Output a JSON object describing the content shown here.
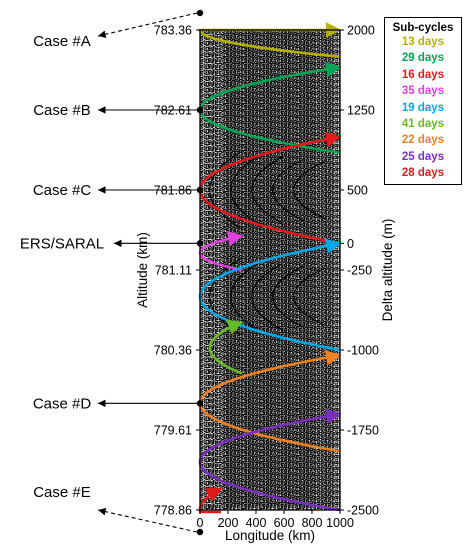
{
  "chart_data": {
    "type": "line",
    "xlabel": "Longitude (km)",
    "ylabel_left": "Altitude (km)",
    "ylabel_right": "Delta altitude (m)",
    "x_ticks": [
      "0",
      "200",
      "400",
      "600",
      "800",
      "1000"
    ],
    "y_left_ticks": [
      "783.36",
      "782.61",
      "781.86",
      "781.11",
      "780.36",
      "779.61",
      "778.86"
    ],
    "y_right_ticks": [
      "2000",
      "1250",
      "500",
      "0",
      "-250",
      "-1000",
      "-1750",
      "-2500"
    ],
    "xlim": [
      0,
      1000
    ],
    "ylim_right": [
      -2500,
      2000
    ],
    "legend": {
      "title": "Sub-cycles",
      "placement": "top-right, outside plot",
      "items": [
        {
          "label": "13 days",
          "color": "#b5b000"
        },
        {
          "label": "29 days",
          "color": "#00a651"
        },
        {
          "label": "16 days",
          "color": "#e31a1c"
        },
        {
          "label": "35 days",
          "color": "#e040e0"
        },
        {
          "label": "19 days",
          "color": "#00a8e8"
        },
        {
          "label": "41 days",
          "color": "#66bb22"
        },
        {
          "label": "22 days",
          "color": "#f08020"
        },
        {
          "label": "25 days",
          "color": "#7b2fbf"
        },
        {
          "label": "28 days",
          "color": "#e31a1c"
        }
      ]
    },
    "series": [
      {
        "name": "13 days",
        "color": "#b5b000",
        "vertex_delta_m": 2000,
        "vertex_x_km": 0,
        "half_width_m": 250,
        "end_x_km": 1000
      },
      {
        "name": "29 days",
        "color": "#00a651",
        "vertex_delta_m": 1250,
        "vertex_x_km": 0,
        "half_width_m": 400,
        "end_x_km": 1000
      },
      {
        "name": "16 days",
        "color": "#e31a1c",
        "vertex_delta_m": 500,
        "vertex_x_km": 0,
        "half_width_m": 500,
        "end_x_km": 1000
      },
      {
        "name": "35 days",
        "color": "#e040e0",
        "vertex_delta_m": -90,
        "vertex_x_km": 0,
        "half_width_m": 160,
        "end_x_km": 300
      },
      {
        "name": "19 days",
        "color": "#00a8e8",
        "vertex_delta_m": -500,
        "vertex_x_km": 0,
        "half_width_m": 500,
        "end_x_km": 1000
      },
      {
        "name": "41 days",
        "color": "#66bb22",
        "vertex_delta_m": -980,
        "vertex_x_km": 70,
        "half_width_m": 240,
        "end_x_km": 300
      },
      {
        "name": "22 days",
        "color": "#f08020",
        "vertex_delta_m": -1500,
        "vertex_x_km": 0,
        "half_width_m": 450,
        "end_x_km": 1000
      },
      {
        "name": "25 days",
        "color": "#7b2fbf",
        "vertex_delta_m": -2050,
        "vertex_x_km": 0,
        "half_width_m": 450,
        "end_x_km": 1000
      },
      {
        "name": "28 days",
        "color": "#e31a1c",
        "vertex_delta_m": -2500,
        "vertex_x_km": 0,
        "half_width_m": 200,
        "end_x_km": 150
      }
    ],
    "annotations": [
      {
        "label": "Case #A",
        "at_delta_m": 2000,
        "style": "dashed"
      },
      {
        "label": "Case #B",
        "at_delta_m": 1250,
        "style": "solid"
      },
      {
        "label": "Case #C",
        "at_delta_m": 500,
        "style": "solid"
      },
      {
        "label": "ERS/SARAL",
        "at_delta_m": 0,
        "style": "solid"
      },
      {
        "label": "Case #D",
        "at_delta_m": -1500,
        "style": "solid"
      },
      {
        "label": "Case #E",
        "at_delta_m": -2500,
        "style": "dashed"
      }
    ]
  }
}
